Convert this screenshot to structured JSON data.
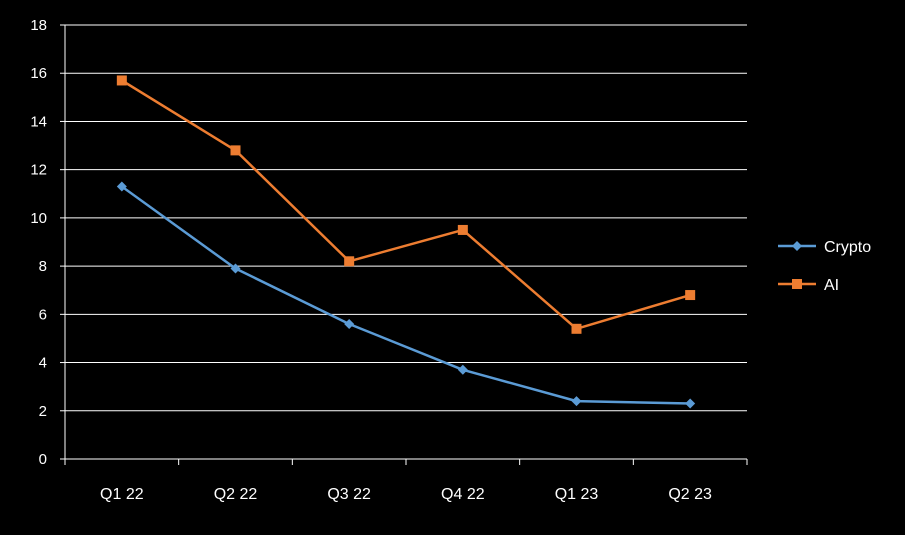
{
  "chart_data": {
    "type": "line",
    "title": "",
    "xlabel": "",
    "ylabel": "",
    "categories": [
      "Q1 22",
      "Q2 22",
      "Q3 22",
      "Q4 22",
      "Q1 23",
      "Q2 23"
    ],
    "ylim": [
      0,
      18
    ],
    "yticks": [
      "0",
      "2",
      "4",
      "6",
      "8",
      "10",
      "12",
      "14",
      "16",
      "18"
    ],
    "grid": "horizontal",
    "legend_position": "right",
    "series": [
      {
        "name": "Crypto",
        "color": "#5B9BD5",
        "marker": "diamond",
        "values": [
          11.3,
          7.9,
          5.6,
          3.7,
          2.4,
          2.3
        ]
      },
      {
        "name": "AI",
        "color": "#ED7D31",
        "marker": "square",
        "values": [
          15.7,
          12.8,
          8.2,
          9.5,
          5.4,
          6.8
        ]
      }
    ],
    "background_color": "#000000",
    "text_color": "#FFFFFF",
    "grid_color": "#FFFFFF"
  }
}
